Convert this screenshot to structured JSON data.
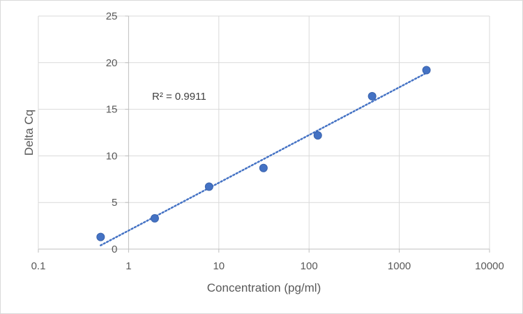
{
  "chart_data": {
    "type": "scatter",
    "xlabel": "Concentration (pg/ml)",
    "ylabel": "Delta Cq",
    "x_scale": "log",
    "xlim": [
      0.1,
      10000
    ],
    "ylim": [
      0,
      25
    ],
    "x_ticks": [
      "0.1",
      "1",
      "10",
      "100",
      "1000",
      "10000"
    ],
    "y_ticks": [
      "0",
      "5",
      "10",
      "15",
      "20",
      "25"
    ],
    "grid": true,
    "points": [
      {
        "x": 0.49,
        "y": 1.3
      },
      {
        "x": 1.95,
        "y": 3.3
      },
      {
        "x": 7.8,
        "y": 6.7
      },
      {
        "x": 31.25,
        "y": 8.7
      },
      {
        "x": 125,
        "y": 12.2
      },
      {
        "x": 500,
        "y": 16.4
      },
      {
        "x": 2000,
        "y": 19.2
      }
    ],
    "trendline": {
      "style": "dotted",
      "from": {
        "x": 0.49,
        "y": 0.4
      },
      "to": {
        "x": 2000,
        "y": 18.9
      }
    },
    "annotation": "R² = 0.9911",
    "point_color": "#4472c4"
  }
}
